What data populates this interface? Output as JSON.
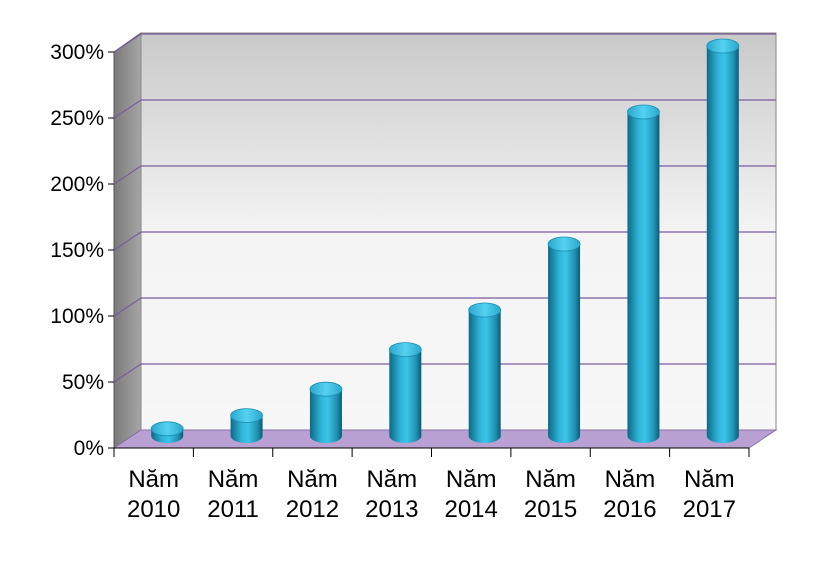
{
  "chart_data": {
    "type": "bar",
    "title": "",
    "xlabel": "",
    "ylabel": "",
    "categories": [
      [
        "Năm",
        "2010"
      ],
      [
        "Năm",
        "2011"
      ],
      [
        "Năm",
        "2012"
      ],
      [
        "Năm",
        "2013"
      ],
      [
        "Năm",
        "2014"
      ],
      [
        "Năm",
        "2015"
      ],
      [
        "Năm",
        "2016"
      ],
      [
        "Năm",
        "2017"
      ]
    ],
    "values": [
      10,
      20,
      40,
      70,
      100,
      150,
      250,
      300
    ],
    "ylim": [
      0,
      300
    ],
    "yticks": [
      "0%",
      "50%",
      "100%",
      "150%",
      "200%",
      "250%",
      "300%"
    ],
    "grid": true,
    "style": "3d-cylinder",
    "colors": {
      "bar": "#2fb4d8",
      "bar_dark": "#0d6a86",
      "bar_top": "#3fc6ea",
      "floor": "#b9a0d2",
      "gridline": "#7a5c9e",
      "back_wall": "#eeeeee",
      "side_wall": "#8c8c8c"
    }
  }
}
